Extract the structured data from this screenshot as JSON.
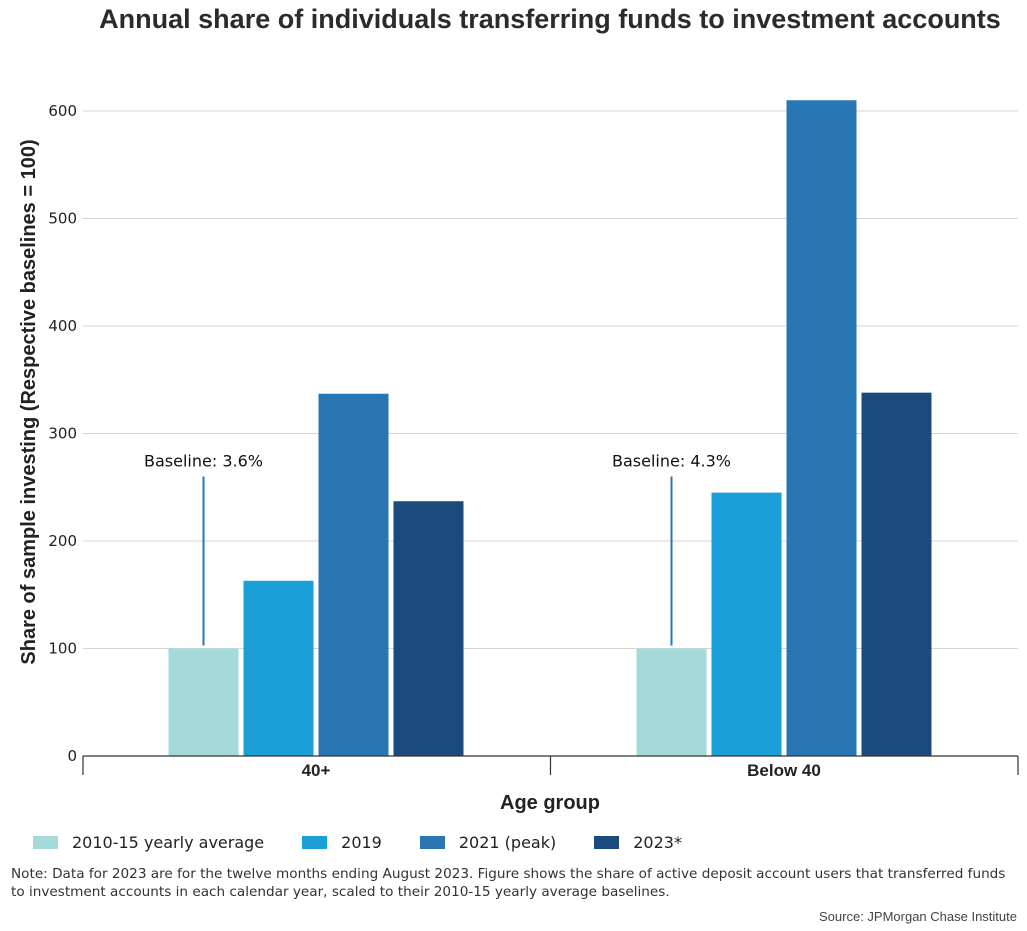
{
  "chart_data": {
    "type": "bar",
    "title": "Annual share of individuals transferring funds to investment accounts",
    "xlabel": "Age group",
    "ylabel": "Share of sample investing (Respective baselines = 100)",
    "categories": [
      "40+",
      "Below 40"
    ],
    "series": [
      {
        "name": "2010-15 yearly average",
        "color": "#a5dadb",
        "values": [
          100,
          100
        ]
      },
      {
        "name": "2019",
        "color": "#1a9fd8",
        "values": [
          163,
          245
        ]
      },
      {
        "name": "2021 (peak)",
        "color": "#2876b3",
        "values": [
          337,
          610
        ]
      },
      {
        "name": "2023*",
        "color": "#1b4a7c",
        "values": [
          237,
          338
        ]
      }
    ],
    "ylim": [
      0,
      620
    ],
    "yticks": [
      "0",
      "100",
      "200",
      "300",
      "400",
      "500",
      "600"
    ],
    "grid": true,
    "legend_position": "bottom",
    "annotations": [
      {
        "category": "40+",
        "text": "Baseline: 3.6%",
        "value": 260
      },
      {
        "category": "Below 40",
        "text": "Baseline: 4.3%",
        "value": 260
      }
    ]
  },
  "note": "Note: Data for 2023 are for the twelve months ending August 2023. Figure shows the share of active deposit account users that transferred funds to investment accounts in each calendar year, scaled to their 2010-15 yearly average baselines.",
  "source": "Source: JPMorgan Chase Institute"
}
